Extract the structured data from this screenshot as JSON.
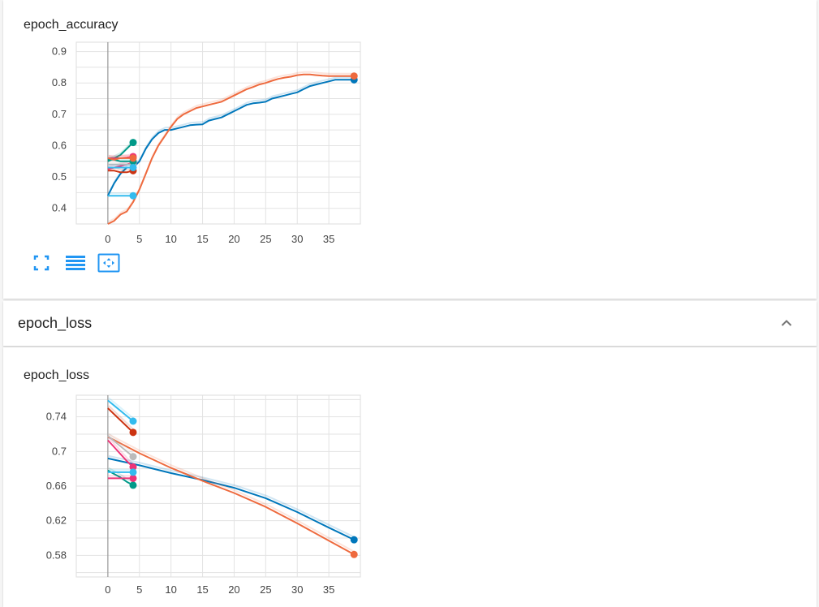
{
  "colors": {
    "blue": "#0077bb",
    "orange": "#ee6a3e",
    "teal": "#009988",
    "cyan": "#33bbee",
    "red": "#cc3311",
    "magenta": "#ee3377",
    "grey": "#bbbbbb",
    "toolbar_icon": "#2196f3"
  },
  "section": {
    "title": "epoch_loss",
    "chevron_icon": "chevron-up-icon"
  },
  "toolbar": [
    "fullscreen-icon",
    "data-table-icon",
    "fit-domain-icon"
  ],
  "chart_data": [
    {
      "type": "line",
      "title": "epoch_accuracy",
      "xlabel": "",
      "ylabel": "",
      "xlim": [
        -5,
        40
      ],
      "ylim": [
        0.35,
        0.93
      ],
      "xticks": [
        0,
        5,
        10,
        15,
        20,
        25,
        30,
        35
      ],
      "xtick_labels": [
        "0",
        "5",
        "10",
        "15",
        "20",
        "25",
        "30",
        "35"
      ],
      "yticks": [
        0.4,
        0.5,
        0.6,
        0.7,
        0.8,
        0.9
      ],
      "ytick_labels": [
        "0.4",
        "0.5",
        "0.6",
        "0.7",
        "0.8",
        "0.9"
      ],
      "grid": true,
      "series": [
        {
          "color": "#0077bb",
          "x": [
            0,
            1,
            2,
            3,
            4,
            5,
            6,
            7,
            8,
            9,
            10,
            11,
            12,
            13,
            14,
            15,
            16,
            17,
            18,
            19,
            20,
            21,
            22,
            23,
            24,
            25,
            26,
            27,
            28,
            29,
            30,
            31,
            32,
            33,
            34,
            35,
            36,
            37,
            38,
            39
          ],
          "values": [
            0.44,
            0.48,
            0.51,
            0.53,
            0.53,
            0.55,
            0.59,
            0.62,
            0.64,
            0.65,
            0.65,
            0.655,
            0.66,
            0.665,
            0.667,
            0.668,
            0.68,
            0.685,
            0.69,
            0.7,
            0.71,
            0.72,
            0.73,
            0.735,
            0.737,
            0.74,
            0.75,
            0.755,
            0.76,
            0.765,
            0.77,
            0.78,
            0.79,
            0.795,
            0.8,
            0.805,
            0.81,
            0.81,
            0.81,
            0.81
          ]
        },
        {
          "color": "#ee6a3e",
          "x": [
            0,
            1,
            2,
            3,
            4,
            5,
            6,
            7,
            8,
            9,
            10,
            11,
            12,
            13,
            14,
            15,
            16,
            17,
            18,
            19,
            20,
            21,
            22,
            23,
            24,
            25,
            26,
            27,
            28,
            29,
            30,
            31,
            32,
            33,
            34,
            35,
            36,
            37,
            38,
            39
          ],
          "values": [
            0.35,
            0.36,
            0.38,
            0.39,
            0.42,
            0.46,
            0.51,
            0.56,
            0.6,
            0.63,
            0.66,
            0.685,
            0.7,
            0.71,
            0.72,
            0.725,
            0.73,
            0.735,
            0.74,
            0.75,
            0.76,
            0.77,
            0.78,
            0.787,
            0.795,
            0.8,
            0.807,
            0.813,
            0.817,
            0.82,
            0.825,
            0.827,
            0.827,
            0.825,
            0.823,
            0.822,
            0.822,
            0.822,
            0.822,
            0.822
          ]
        },
        {
          "color": "#009988",
          "x": [
            0,
            1,
            2,
            3,
            4
          ],
          "values": [
            0.55,
            0.56,
            0.57,
            0.59,
            0.61
          ]
        },
        {
          "color": "#33bbee",
          "x": [
            0,
            1,
            2,
            3,
            4
          ],
          "values": [
            0.44,
            0.44,
            0.44,
            0.44,
            0.44
          ]
        },
        {
          "color": "#cc3311",
          "x": [
            0,
            1,
            2,
            3,
            4
          ],
          "values": [
            0.52,
            0.52,
            0.515,
            0.515,
            0.52
          ]
        },
        {
          "color": "#ee3377",
          "x": [
            0,
            1,
            2,
            3,
            4
          ],
          "values": [
            0.56,
            0.56,
            0.56,
            0.562,
            0.565
          ]
        },
        {
          "color": "#ee3377",
          "x": [
            0,
            1,
            2,
            3,
            4
          ],
          "values": [
            0.525,
            0.53,
            0.535,
            0.54,
            0.545
          ]
        },
        {
          "color": "#bbbbbb",
          "x": [
            0,
            1,
            2,
            3,
            4
          ],
          "values": [
            0.54,
            0.54,
            0.54,
            0.54,
            0.54
          ]
        },
        {
          "color": "#009988",
          "x": [
            0,
            1,
            2,
            3,
            4
          ],
          "values": [
            0.555,
            0.555,
            0.55,
            0.55,
            0.55
          ]
        },
        {
          "color": "#33bbee",
          "x": [
            0,
            1,
            2,
            3,
            4
          ],
          "values": [
            0.53,
            0.53,
            0.53,
            0.53,
            0.53
          ]
        },
        {
          "color": "#ee6a3e",
          "x": [
            0,
            1,
            2,
            3,
            4
          ],
          "values": [
            0.56,
            0.555,
            0.56,
            0.56,
            0.56
          ]
        }
      ]
    },
    {
      "type": "line",
      "title": "epoch_loss",
      "xlabel": "",
      "ylabel": "",
      "xlim": [
        -5,
        40
      ],
      "ylim": [
        0.555,
        0.765
      ],
      "xticks": [
        0,
        5,
        10,
        15,
        20,
        25,
        30,
        35
      ],
      "xtick_labels": [
        "0",
        "5",
        "10",
        "15",
        "20",
        "25",
        "30",
        "35"
      ],
      "yticks": [
        0.58,
        0.62,
        0.66,
        0.7,
        0.74
      ],
      "ytick_labels": [
        "0.58",
        "0.62",
        "0.66",
        "0.7",
        "0.74"
      ],
      "grid": true,
      "series": [
        {
          "color": "#0077bb",
          "x": [
            0,
            5,
            10,
            15,
            20,
            25,
            30,
            35,
            39
          ],
          "values": [
            0.692,
            0.684,
            0.675,
            0.667,
            0.658,
            0.646,
            0.63,
            0.612,
            0.598
          ]
        },
        {
          "color": "#ee6a3e",
          "x": [
            0,
            5,
            10,
            15,
            20,
            25,
            30,
            35,
            39
          ],
          "values": [
            0.717,
            0.698,
            0.681,
            0.666,
            0.652,
            0.636,
            0.617,
            0.597,
            0.581
          ]
        },
        {
          "color": "#33bbee",
          "x": [
            0,
            1,
            2,
            3,
            4
          ],
          "values": [
            0.759,
            0.753,
            0.747,
            0.741,
            0.735
          ]
        },
        {
          "color": "#cc3311",
          "x": [
            0,
            1,
            2,
            3,
            4
          ],
          "values": [
            0.75,
            0.743,
            0.736,
            0.729,
            0.722
          ]
        },
        {
          "color": "#bbbbbb",
          "x": [
            0,
            1,
            2,
            3,
            4
          ],
          "values": [
            0.718,
            0.712,
            0.706,
            0.7,
            0.694
          ]
        },
        {
          "color": "#ee3377",
          "x": [
            0,
            1,
            2,
            3,
            4
          ],
          "values": [
            0.713,
            0.705,
            0.697,
            0.689,
            0.682
          ]
        },
        {
          "color": "#009988",
          "x": [
            0,
            1,
            2,
            3,
            4
          ],
          "values": [
            0.678,
            0.674,
            0.67,
            0.665,
            0.661
          ]
        },
        {
          "color": "#ee3377",
          "x": [
            0,
            1,
            2,
            3,
            4
          ],
          "values": [
            0.669,
            0.669,
            0.669,
            0.669,
            0.669
          ]
        },
        {
          "color": "#33bbee",
          "x": [
            0,
            1,
            2,
            3,
            4
          ],
          "values": [
            0.676,
            0.676,
            0.676,
            0.676,
            0.676
          ]
        }
      ]
    }
  ]
}
